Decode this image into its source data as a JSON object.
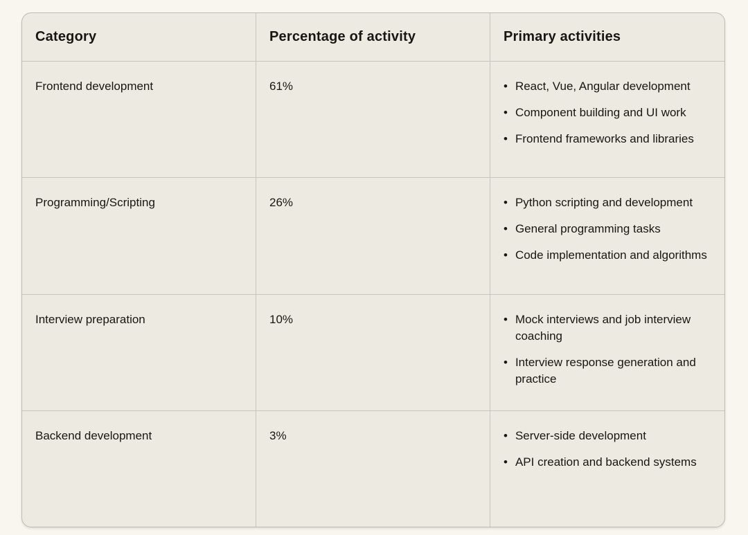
{
  "icons": {
    "bullet": "•"
  },
  "colors": {
    "page_background": "#f9f6ef",
    "table_background": "#edeae2",
    "border": "#c7c5be",
    "text": "#181613"
  },
  "table": {
    "columns": [
      "Category",
      "Percentage of activity",
      "Primary activities"
    ],
    "rows": [
      {
        "category": "Frontend development",
        "percentage": "61%",
        "activities": [
          "React, Vue, Angular development",
          "Component building and UI work",
          "Frontend frameworks and libraries"
        ]
      },
      {
        "category": "Programming/Scripting",
        "percentage": "26%",
        "activities": [
          "Python scripting and development",
          "General programming tasks",
          "Code implementation and algorithms"
        ]
      },
      {
        "category": "Interview preparation",
        "percentage": "10%",
        "activities": [
          "Mock interviews and job interview coaching",
          "Interview response generation and practice"
        ]
      },
      {
        "category": "Backend development",
        "percentage": "3%",
        "activities": [
          "Server-side development",
          "API creation and backend systems"
        ]
      }
    ]
  },
  "chart_data": {
    "type": "table",
    "title": "",
    "columns": [
      "Category",
      "Percentage of activity",
      "Primary activities"
    ],
    "categories": [
      "Frontend development",
      "Programming/Scripting",
      "Interview preparation",
      "Backend development"
    ],
    "values": [
      61,
      26,
      10,
      3
    ],
    "value_unit": "%",
    "primary_activities": [
      [
        "React, Vue, Angular development",
        "Component building and UI work",
        "Frontend frameworks and libraries"
      ],
      [
        "Python scripting and development",
        "General programming tasks",
        "Code implementation and algorithms"
      ],
      [
        "Mock interviews and job interview coaching",
        "Interview response generation and practice"
      ],
      [
        "Server-side development",
        "API creation and backend systems"
      ]
    ]
  }
}
